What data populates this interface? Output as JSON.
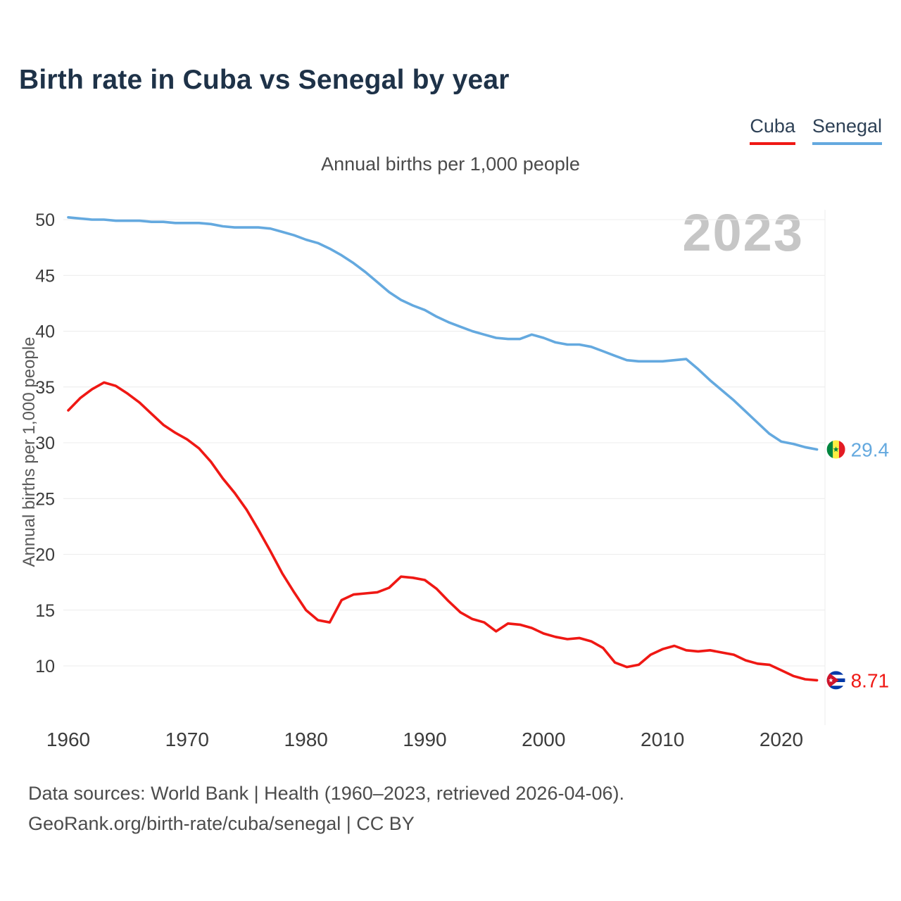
{
  "page": {
    "title": "Birth rate in Cuba vs Senegal by year",
    "subtitle": "Annual births per 1,000 people",
    "watermark": "2023",
    "y_axis_title": "Annual births per 1,000 people",
    "footer_line1": "Data sources: World Bank | Health (1960–2023, retrieved 2026-04-06).",
    "footer_line2": "GeoRank.org/birth-rate/cuba/senegal | CC BY"
  },
  "legend": {
    "items": [
      {
        "label": "Cuba",
        "color": "#ef1814"
      },
      {
        "label": "Senegal",
        "color": "#64a9df"
      }
    ]
  },
  "chart_data": {
    "type": "line",
    "title": "Birth rate in Cuba vs Senegal by year",
    "subtitle": "Annual births per 1,000 people",
    "xlabel": "",
    "ylabel": "Annual births per 1,000 people",
    "ylim": [
      4.5,
      52
    ],
    "xlim": [
      1958.8,
      2029
    ],
    "grid": "horizontal",
    "legend_position": "top-right",
    "yticks": [
      10,
      15,
      20,
      25,
      30,
      35,
      40,
      45,
      50
    ],
    "xticks": [
      1960,
      1970,
      1980,
      1990,
      2000,
      2010,
      2020
    ],
    "x": [
      1960,
      1961,
      1962,
      1963,
      1964,
      1965,
      1966,
      1967,
      1968,
      1969,
      1970,
      1971,
      1972,
      1973,
      1974,
      1975,
      1976,
      1977,
      1978,
      1979,
      1980,
      1981,
      1982,
      1983,
      1984,
      1985,
      1986,
      1987,
      1988,
      1989,
      1990,
      1991,
      1992,
      1993,
      1994,
      1995,
      1996,
      1997,
      1998,
      1999,
      2000,
      2001,
      2002,
      2003,
      2004,
      2005,
      2006,
      2007,
      2008,
      2009,
      2010,
      2011,
      2012,
      2013,
      2014,
      2015,
      2016,
      2017,
      2018,
      2019,
      2020,
      2021,
      2022,
      2023
    ],
    "series": [
      {
        "name": "Senegal",
        "color": "#64a9df",
        "flag": "senegal",
        "end_label": "29.4",
        "values": [
          50.2,
          50.1,
          50.0,
          50.0,
          49.9,
          49.9,
          49.9,
          49.8,
          49.8,
          49.7,
          49.7,
          49.7,
          49.6,
          49.4,
          49.3,
          49.3,
          49.3,
          49.2,
          48.9,
          48.6,
          48.2,
          47.9,
          47.4,
          46.8,
          46.1,
          45.3,
          44.4,
          43.5,
          42.8,
          42.3,
          41.9,
          41.3,
          40.8,
          40.4,
          40.0,
          39.7,
          39.4,
          39.3,
          39.3,
          39.7,
          39.4,
          39.0,
          38.8,
          38.8,
          38.6,
          38.2,
          37.8,
          37.4,
          37.3,
          37.3,
          37.3,
          37.4,
          37.5,
          36.6,
          35.6,
          34.7,
          33.8,
          32.8,
          31.8,
          30.8,
          30.1,
          29.9,
          29.6,
          29.4
        ]
      },
      {
        "name": "Cuba",
        "color": "#ef1814",
        "flag": "cuba",
        "end_label": "8.71",
        "values": [
          32.9,
          34.0,
          34.8,
          35.4,
          35.1,
          34.4,
          33.6,
          32.6,
          31.6,
          30.9,
          30.3,
          29.5,
          28.3,
          26.8,
          25.5,
          24.0,
          22.2,
          20.3,
          18.3,
          16.6,
          15.0,
          14.1,
          13.9,
          15.9,
          16.4,
          16.5,
          16.6,
          17.0,
          18.0,
          17.9,
          17.7,
          16.9,
          15.8,
          14.8,
          14.2,
          13.9,
          13.1,
          13.8,
          13.7,
          13.4,
          12.9,
          12.6,
          12.4,
          12.5,
          12.2,
          11.6,
          10.3,
          9.9,
          10.1,
          11.0,
          11.5,
          11.8,
          11.4,
          11.3,
          11.4,
          11.2,
          11.0,
          10.5,
          10.2,
          10.1,
          9.6,
          9.1,
          8.8,
          8.71
        ]
      }
    ]
  }
}
